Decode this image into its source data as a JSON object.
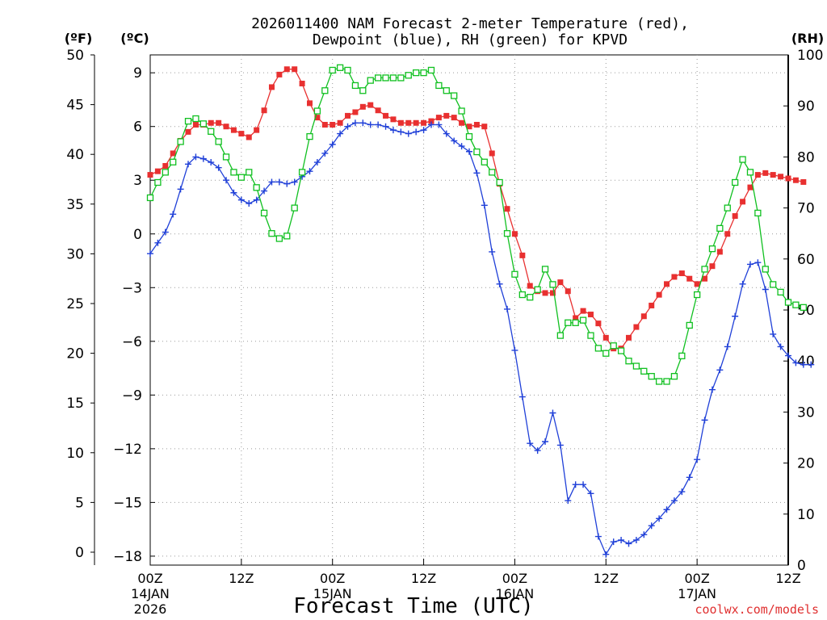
{
  "chart_data": {
    "type": "line",
    "title_line1": "2026011400 NAM Forecast 2-meter Temperature (red),",
    "title_line2": "Dewpoint (blue), RH (green) for KPVD",
    "xlabel": "Forecast Time (UTC)",
    "credit": "coolwx.com/models",
    "left_units": {
      "f": "(ºF)",
      "c": "(ºC)"
    },
    "right_units": "(RH)",
    "f_ticks": [
      0,
      5,
      10,
      15,
      20,
      25,
      30,
      35,
      40,
      45,
      50
    ],
    "c_ticks": [
      "9",
      "6",
      "3",
      "0",
      "−3",
      "−6",
      "−9",
      "−12",
      "−15",
      "−18"
    ],
    "c_tick_values": [
      9,
      6,
      3,
      0,
      -3,
      -6,
      -9,
      -12,
      -15,
      -18
    ],
    "rh_ticks": [
      0,
      10,
      20,
      30,
      40,
      50,
      60,
      70,
      80,
      90,
      100
    ],
    "x_ticks": [
      {
        "label": "00Z",
        "sub1": "14JAN",
        "sub2": "2026",
        "hour": 0
      },
      {
        "label": "12Z",
        "sub1": "",
        "sub2": "",
        "hour": 12
      },
      {
        "label": "00Z",
        "sub1": "15JAN",
        "sub2": "",
        "hour": 24
      },
      {
        "label": "12Z",
        "sub1": "",
        "sub2": "",
        "hour": 36
      },
      {
        "label": "00Z",
        "sub1": "16JAN",
        "sub2": "",
        "hour": 48
      },
      {
        "label": "12Z",
        "sub1": "",
        "sub2": "",
        "hour": 60
      },
      {
        "label": "00Z",
        "sub1": "17JAN",
        "sub2": "",
        "hour": 72
      },
      {
        "label": "12Z",
        "sub1": "",
        "sub2": "",
        "hour": 84
      }
    ],
    "xlim": [
      0,
      84
    ],
    "ylim_c": [
      -18.5,
      10
    ],
    "ylim_rh": [
      0,
      100
    ],
    "series": [
      {
        "name": "Temperature",
        "units": "C",
        "color": "#e83030",
        "marker": "filled-square",
        "values": [
          3.3,
          3.5,
          3.8,
          4.5,
          5.2,
          5.7,
          6.1,
          6.1,
          6.2,
          6.2,
          6.0,
          5.8,
          5.6,
          5.4,
          5.8,
          6.9,
          8.2,
          8.9,
          9.2,
          9.2,
          8.4,
          7.3,
          6.5,
          6.1,
          6.1,
          6.2,
          6.6,
          6.8,
          7.1,
          7.2,
          6.9,
          6.6,
          6.4,
          6.2,
          6.2,
          6.2,
          6.2,
          6.3,
          6.5,
          6.6,
          6.5,
          6.2,
          6.0,
          6.1,
          6.0,
          4.5,
          2.8,
          1.4,
          0.0,
          -1.2,
          -2.9,
          -3.2,
          -3.3,
          -3.3,
          -2.7,
          -3.2,
          -4.7,
          -4.3,
          -4.5,
          -5.0,
          -5.8,
          -6.4,
          -6.4,
          -5.8,
          -5.2,
          -4.6,
          -4.0,
          -3.4,
          -2.8,
          -2.4,
          -2.2,
          -2.5,
          -2.8,
          -2.5,
          -1.8,
          -1.0,
          0.0,
          1.0,
          1.8,
          2.6,
          3.3,
          3.4,
          3.3,
          3.2,
          3.1,
          3.0,
          2.9
        ]
      },
      {
        "name": "Dewpoint",
        "units": "C",
        "color": "#2040d8",
        "marker": "plus",
        "values": [
          -1.1,
          -0.5,
          0.1,
          1.1,
          2.5,
          3.9,
          4.3,
          4.2,
          4.0,
          3.7,
          3.0,
          2.3,
          1.9,
          1.7,
          1.9,
          2.4,
          2.9,
          2.9,
          2.8,
          2.9,
          3.2,
          3.5,
          4.0,
          4.5,
          5.0,
          5.6,
          6.0,
          6.2,
          6.2,
          6.1,
          6.1,
          6.0,
          5.8,
          5.7,
          5.6,
          5.7,
          5.8,
          6.1,
          6.1,
          5.6,
          5.2,
          4.9,
          4.6,
          3.4,
          1.6,
          -1.0,
          -2.8,
          -4.2,
          -6.5,
          -9.1,
          -11.7,
          -12.1,
          -11.6,
          -10.0,
          -11.8,
          -14.9,
          -14.0,
          -14.0,
          -14.5,
          -16.9,
          -17.9,
          -17.2,
          -17.1,
          -17.3,
          -17.1,
          -16.8,
          -16.3,
          -15.9,
          -15.4,
          -14.9,
          -14.4,
          -13.6,
          -12.6,
          -10.4,
          -8.7,
          -7.6,
          -6.3,
          -4.6,
          -2.8,
          -1.7,
          -1.6,
          -3.1,
          -5.6,
          -6.3,
          -6.8,
          -7.2,
          -7.3,
          -7.3
        ]
      },
      {
        "name": "RH",
        "units": "%",
        "color": "#10c020",
        "marker": "open-square",
        "values": [
          72,
          75,
          77,
          79,
          83,
          87,
          87.5,
          86.5,
          85,
          83,
          80,
          77,
          76,
          77,
          74,
          69,
          65,
          64,
          64.5,
          70,
          77,
          84,
          89,
          93,
          97,
          97.5,
          97,
          94,
          93,
          95,
          95.5,
          95.5,
          95.5,
          95.5,
          96,
          96.5,
          96.5,
          97,
          94,
          93,
          92,
          89,
          84,
          81,
          79,
          77,
          75,
          65,
          57,
          53,
          52.5,
          54,
          58,
          55,
          45,
          47.5,
          47.5,
          48,
          45,
          42.5,
          41.5,
          43,
          42,
          40,
          39,
          38,
          37,
          36,
          36,
          37,
          41,
          47,
          53,
          58,
          62,
          66,
          70,
          75,
          79.5,
          77,
          69,
          58,
          55,
          53.5,
          51.5,
          51,
          50.5
        ]
      }
    ]
  }
}
